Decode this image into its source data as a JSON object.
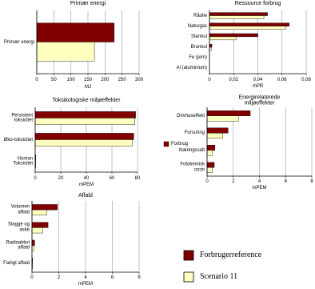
{
  "chart_data": [
    {
      "type": "bar",
      "orientation": "horizontal",
      "title": "Primær energi",
      "categories": [
        "Primær energi"
      ],
      "series": [
        {
          "name": "Forbrugerreference",
          "color": "#800000",
          "values": [
            227
          ]
        },
        {
          "name": "Scenario 11",
          "color": "#ffffc0",
          "values": [
            169
          ]
        }
      ],
      "xlim": [
        0,
        300
      ],
      "xticks": [
        0,
        50,
        100,
        150,
        200,
        250,
        300
      ],
      "xlabel": "MJ",
      "grid": true
    },
    {
      "type": "bar",
      "orientation": "horizontal",
      "title": "Ressource forbrug",
      "categories": [
        "Råolie",
        "Naturgas",
        "Stenkul",
        "Brunkul",
        "Fe (jern)",
        "Al (aluminium)"
      ],
      "series": [
        {
          "name": "Forbrugerreference",
          "color": "#800000",
          "values": [
            0.048,
            0.066,
            0.04,
            0.002,
            0,
            0
          ]
        },
        {
          "name": "Scenario 11",
          "color": "#ffffc0",
          "values": [
            0.045,
            0.063,
            0.022,
            0.0015,
            0,
            0
          ]
        }
      ],
      "xlim": [
        0,
        0.08
      ],
      "xticks": [
        0,
        {
          "value": 0.02,
          "label": "0,02"
        },
        {
          "value": 0.04,
          "label": "0,04"
        },
        {
          "value": 0.06,
          "label": "0,06"
        },
        {
          "value": 0.08,
          "label": "0,08"
        }
      ],
      "xlabel": "mPR",
      "grid": true
    },
    {
      "type": "bar",
      "orientation": "horizontal",
      "title": "Toksikologiske miljøeffekter",
      "categories": [
        "Persistent\ntoksicitet",
        "Øko-toksicitet",
        "Human\nToksicitet"
      ],
      "series": [
        {
          "name": "Forbrugerreference",
          "color": "#800000",
          "values": [
            78.5,
            77,
            0.5
          ]
        },
        {
          "name": "Scenario 11",
          "color": "#ffffc0",
          "values": [
            78,
            76,
            0.4
          ]
        }
      ],
      "xlim": [
        0,
        80
      ],
      "xticks": [
        0,
        20,
        40,
        60,
        80
      ],
      "xlabel": "mPEM",
      "grid": true,
      "legend_label": "Forbrug"
    },
    {
      "type": "bar",
      "orientation": "horizontal",
      "title": "Energirelaterede miljøeffekter",
      "categories": [
        "Drivhuseffekt",
        "Forsuring",
        "Næringssalt",
        "Fotokemisk\nozon"
      ],
      "series": [
        {
          "name": "Forbrugerreference",
          "color": "#800000",
          "values": [
            3.3,
            1.6,
            0.6,
            0.55
          ]
        },
        {
          "name": "Scenario 11",
          "color": "#ffffc0",
          "values": [
            2.4,
            1.2,
            0.4,
            0.4
          ]
        }
      ],
      "xlim": [
        0,
        8
      ],
      "xticks": [
        0,
        2,
        4,
        6,
        8
      ],
      "xlabel": "mPEM",
      "grid": true
    },
    {
      "type": "bar",
      "orientation": "horizontal",
      "title": "Affald",
      "categories": [
        "Volumen\naffald",
        "Slagge og\naske",
        "Radioaktivt\naffald",
        "Farligt affald"
      ],
      "series": [
        {
          "name": "Forbrugerreference",
          "color": "#800000",
          "values": [
            1.9,
            1.2,
            0.2,
            0.05
          ]
        },
        {
          "name": "Scenario 11",
          "color": "#ffffc0",
          "values": [
            1.1,
            0.8,
            0.15,
            0.05
          ]
        }
      ],
      "xlim": [
        0,
        8
      ],
      "xticks": [
        0,
        2,
        4,
        6,
        8
      ],
      "xlabel": "mPEM",
      "grid": true
    }
  ]
}
